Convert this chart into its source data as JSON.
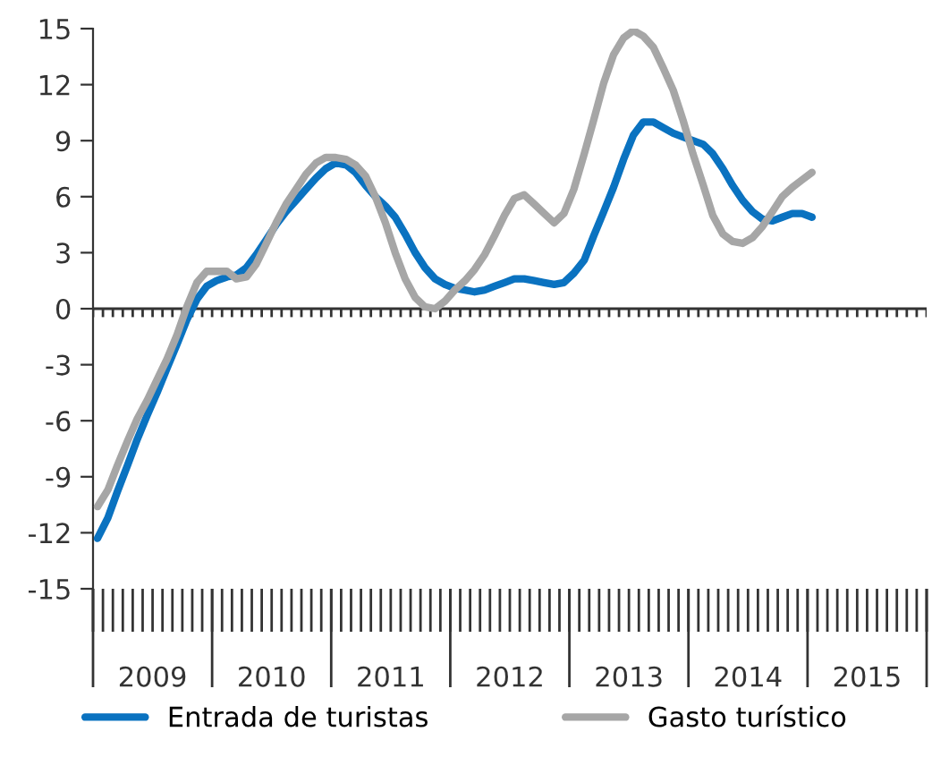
{
  "chart_data": {
    "type": "line",
    "x": [
      "2009-01-15",
      "2009-02-15",
      "2009-03-15",
      "2009-04-15",
      "2009-05-15",
      "2009-06-15",
      "2009-07-15",
      "2009-08-15",
      "2009-09-15",
      "2009-10-15",
      "2009-11-15",
      "2009-12-15",
      "2010-01-15",
      "2010-02-15",
      "2010-03-15",
      "2010-04-15",
      "2010-05-15",
      "2010-06-15",
      "2010-07-15",
      "2010-08-15",
      "2010-09-15",
      "2010-10-15",
      "2010-11-15",
      "2010-12-15",
      "2011-01-15",
      "2011-02-15",
      "2011-03-15",
      "2011-04-15",
      "2011-05-15",
      "2011-06-15",
      "2011-07-15",
      "2011-08-15",
      "2011-09-15",
      "2011-10-15",
      "2011-11-15",
      "2011-12-15",
      "2012-01-15",
      "2012-02-15",
      "2012-03-15",
      "2012-04-15",
      "2012-05-15",
      "2012-06-15",
      "2012-07-15",
      "2012-08-15",
      "2012-09-15",
      "2012-10-15",
      "2012-11-15",
      "2012-12-15",
      "2013-01-15",
      "2013-02-15",
      "2013-03-15",
      "2013-04-15",
      "2013-05-15",
      "2013-06-15",
      "2013-07-15",
      "2013-08-15",
      "2013-09-15",
      "2013-10-15",
      "2013-11-15",
      "2013-12-15",
      "2014-01-15",
      "2014-02-15",
      "2014-03-15",
      "2014-04-15",
      "2014-05-15",
      "2014-06-15",
      "2014-07-15",
      "2014-08-15",
      "2014-09-15",
      "2014-10-15",
      "2014-11-15",
      "2014-12-15",
      "2015-01-15"
    ],
    "series": [
      {
        "name": "Entrada de turistas",
        "color": "#0a72c0",
        "values": [
          -12.3,
          -11.2,
          -9.8,
          -8.4,
          -7.0,
          -5.7,
          -4.5,
          -3.2,
          -1.9,
          -0.6,
          0.5,
          1.2,
          1.5,
          1.7,
          1.8,
          2.2,
          2.9,
          3.7,
          4.5,
          5.2,
          5.8,
          6.4,
          7.0,
          7.5,
          7.8,
          7.7,
          7.3,
          6.6,
          6.0,
          5.5,
          4.9,
          4.0,
          3.0,
          2.2,
          1.6,
          1.3,
          1.1,
          1.0,
          0.9,
          1.0,
          1.2,
          1.4,
          1.6,
          1.6,
          1.5,
          1.4,
          1.3,
          1.4,
          1.9,
          2.6,
          3.9,
          5.2,
          6.5,
          8.0,
          9.3,
          10.0,
          10.0,
          9.7,
          9.4,
          9.2,
          9.0,
          8.8,
          8.3,
          7.5,
          6.6,
          5.8,
          5.2,
          4.8,
          4.7,
          4.9,
          5.1,
          5.1,
          4.9
        ]
      },
      {
        "name": "Gasto turístico",
        "color": "#a6a6a6",
        "values": [
          -10.6,
          -9.7,
          -8.4,
          -7.1,
          -5.9,
          -4.9,
          -3.8,
          -2.7,
          -1.4,
          0.1,
          1.4,
          2.0,
          2.0,
          2.0,
          1.6,
          1.7,
          2.4,
          3.5,
          4.6,
          5.6,
          6.4,
          7.2,
          7.8,
          8.1,
          8.1,
          8.0,
          7.7,
          7.1,
          6.0,
          4.6,
          3.0,
          1.6,
          0.6,
          0.1,
          0.0,
          0.4,
          1.0,
          1.5,
          2.1,
          2.9,
          3.9,
          5.0,
          5.9,
          6.1,
          5.6,
          5.1,
          4.6,
          5.1,
          6.4,
          8.3,
          10.1,
          12.1,
          13.6,
          14.5,
          14.9,
          14.6,
          14.0,
          12.9,
          11.7,
          10.1,
          8.3,
          6.6,
          5.0,
          4.0,
          3.6,
          3.5,
          3.8,
          4.4,
          5.2,
          6.0,
          6.5,
          6.9,
          7.3
        ]
      }
    ],
    "xlim": [
      "2009-01-01",
      "2016-01-01"
    ],
    "xticks": [
      {
        "value": "2009-07-01",
        "label": "2009"
      },
      {
        "value": "2010-01-01",
        "label": null
      },
      {
        "value": "2010-07-01",
        "label": "2010"
      },
      {
        "value": "2011-01-01",
        "label": null
      },
      {
        "value": "2011-07-01",
        "label": "2011"
      },
      {
        "value": "2012-01-01",
        "label": null
      },
      {
        "value": "2012-07-01",
        "label": "2012"
      },
      {
        "value": "2013-01-01",
        "label": null
      },
      {
        "value": "2013-07-01",
        "label": "2013"
      },
      {
        "value": "2014-01-01",
        "label": null
      },
      {
        "value": "2014-07-01",
        "label": "2014"
      },
      {
        "value": "2015-01-01",
        "label": null
      },
      {
        "value": "2015-07-01",
        "label": "2015"
      },
      {
        "value": "2016-01-01",
        "label": null
      }
    ],
    "ylim": [
      -15,
      15
    ],
    "yticks": [
      -15,
      -12,
      -9,
      -6,
      -3,
      0,
      3,
      6,
      9,
      12,
      15
    ],
    "legend": "bottom",
    "marker": "none",
    "line_style": "solid"
  }
}
